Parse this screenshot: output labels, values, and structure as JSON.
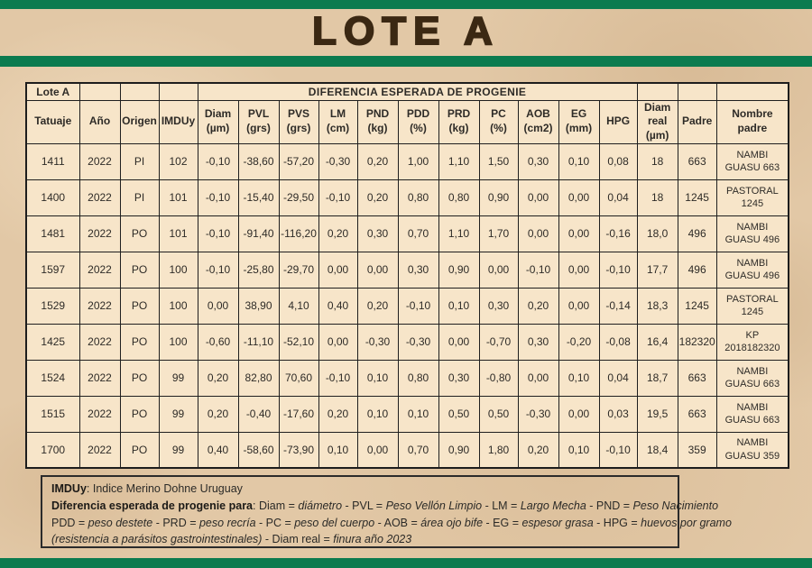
{
  "title": "LOTE A",
  "colors": {
    "green_bar": "#0b7b4f",
    "title_brown": "#3b2813",
    "cell_fill": "#f7e5c9",
    "page_parchment": "#e2c8a6"
  },
  "table": {
    "corner_label": "Lote A",
    "span_header": "DIFERENCIA ESPERADA DE PROGENIE",
    "columns": [
      {
        "id": "tatuaje",
        "lines": [
          "Tatuaje"
        ]
      },
      {
        "id": "anio",
        "lines": [
          "Año"
        ]
      },
      {
        "id": "origen",
        "lines": [
          "Origen"
        ]
      },
      {
        "id": "imduy",
        "lines": [
          "IMDUy"
        ]
      },
      {
        "id": "diam",
        "lines": [
          "Diam",
          "(µm)"
        ]
      },
      {
        "id": "pvl",
        "lines": [
          "PVL",
          "(grs)"
        ]
      },
      {
        "id": "pvs",
        "lines": [
          "PVS",
          "(grs)"
        ]
      },
      {
        "id": "lm",
        "lines": [
          "LM",
          "(cm)"
        ]
      },
      {
        "id": "pnd",
        "lines": [
          "PND",
          "(kg)"
        ]
      },
      {
        "id": "pdd",
        "lines": [
          "PDD",
          "(%)"
        ]
      },
      {
        "id": "prd",
        "lines": [
          "PRD",
          "(kg)"
        ]
      },
      {
        "id": "pc",
        "lines": [
          "PC",
          "(%)"
        ]
      },
      {
        "id": "aob",
        "lines": [
          "AOB",
          "(cm2)"
        ]
      },
      {
        "id": "eg",
        "lines": [
          "EG",
          "(mm)"
        ]
      },
      {
        "id": "hpg",
        "lines": [
          "HPG"
        ]
      },
      {
        "id": "diam-real",
        "lines": [
          "Diam",
          "real",
          "(µm)"
        ]
      },
      {
        "id": "padre",
        "lines": [
          "Padre"
        ]
      },
      {
        "id": "nombre-padre",
        "lines": [
          "Nombre",
          "padre"
        ]
      }
    ],
    "rows": [
      [
        "1411",
        "2022",
        "PI",
        "102",
        "-0,10",
        "-38,60",
        "-57,20",
        "-0,30",
        "0,20",
        "1,00",
        "1,10",
        "1,50",
        "0,30",
        "0,10",
        "0,08",
        "18",
        "663",
        "NAMBI GUASU 663"
      ],
      [
        "1400",
        "2022",
        "PI",
        "101",
        "-0,10",
        "-15,40",
        "-29,50",
        "-0,10",
        "0,20",
        "0,80",
        "0,80",
        "0,90",
        "0,00",
        "0,00",
        "0,04",
        "18",
        "1245",
        "PASTORAL 1245"
      ],
      [
        "1481",
        "2022",
        "PO",
        "101",
        "-0,10",
        "-91,40",
        "-116,20",
        "0,20",
        "0,30",
        "0,70",
        "1,10",
        "1,70",
        "0,00",
        "0,00",
        "-0,16",
        "18,0",
        "496",
        "NAMBI GUASU 496"
      ],
      [
        "1597",
        "2022",
        "PO",
        "100",
        "-0,10",
        "-25,80",
        "-29,70",
        "0,00",
        "0,00",
        "0,30",
        "0,90",
        "0,00",
        "-0,10",
        "0,00",
        "-0,10",
        "17,7",
        "496",
        "NAMBI GUASU 496"
      ],
      [
        "1529",
        "2022",
        "PO",
        "100",
        "0,00",
        "38,90",
        "4,10",
        "0,40",
        "0,20",
        "-0,10",
        "0,10",
        "0,30",
        "0,20",
        "0,00",
        "-0,14",
        "18,3",
        "1245",
        "PASTORAL 1245"
      ],
      [
        "1425",
        "2022",
        "PO",
        "100",
        "-0,60",
        "-11,10",
        "-52,10",
        "0,00",
        "-0,30",
        "-0,30",
        "0,00",
        "-0,70",
        "0,30",
        "-0,20",
        "-0,08",
        "16,4",
        "182320",
        "KP 2018182320"
      ],
      [
        "1524",
        "2022",
        "PO",
        "99",
        "0,20",
        "82,80",
        "70,60",
        "-0,10",
        "0,10",
        "0,80",
        "0,30",
        "-0,80",
        "0,00",
        "0,10",
        "0,04",
        "18,7",
        "663",
        "NAMBI GUASU 663"
      ],
      [
        "1515",
        "2022",
        "PO",
        "99",
        "0,20",
        "-0,40",
        "-17,60",
        "0,20",
        "0,10",
        "0,10",
        "0,50",
        "0,50",
        "-0,30",
        "0,00",
        "0,03",
        "19,5",
        "663",
        "NAMBI GUASU 663"
      ],
      [
        "1700",
        "2022",
        "PO",
        "99",
        "0,40",
        "-58,60",
        "-73,90",
        "0,10",
        "0,00",
        "0,70",
        "0,90",
        "1,80",
        "0,20",
        "0,10",
        "-0,10",
        "18,4",
        "359",
        "NAMBI GUASU 359"
      ]
    ]
  },
  "footer": {
    "lines": [
      [
        {
          "t": "IMDUy",
          "b": true
        },
        {
          "t": ":  Indice Merino Dohne Uruguay"
        }
      ],
      [
        {
          "t": "Diferencia esperada de progenie para",
          "b": true
        },
        {
          "t": ": Diam = "
        },
        {
          "t": "diámetro",
          "i": true
        },
        {
          "t": " - PVL = "
        },
        {
          "t": "Peso Vellón Limpio",
          "i": true
        },
        {
          "t": " - LM = "
        },
        {
          "t": "Largo Mecha",
          "i": true
        },
        {
          "t": " - PND = "
        },
        {
          "t": "Peso Nacimiento",
          "i": true
        }
      ],
      [
        {
          "t": "PDD = "
        },
        {
          "t": "peso destete",
          "i": true
        },
        {
          "t": " -  PRD = "
        },
        {
          "t": "peso recría",
          "i": true
        },
        {
          "t": " - PC = "
        },
        {
          "t": "peso del cuerpo",
          "i": true
        },
        {
          "t": " - AOB = "
        },
        {
          "t": "área ojo bife",
          "i": true
        },
        {
          "t": " - EG = "
        },
        {
          "t": "espesor grasa",
          "i": true
        },
        {
          "t": " - HPG = "
        },
        {
          "t": "huevos por gramo",
          "i": true
        }
      ],
      [
        {
          "t": "(resistencia a parásitos gastrointestinales)",
          "i": true
        },
        {
          "t": " - Diam real = "
        },
        {
          "t": "finura año 2023",
          "i": true
        }
      ]
    ]
  }
}
